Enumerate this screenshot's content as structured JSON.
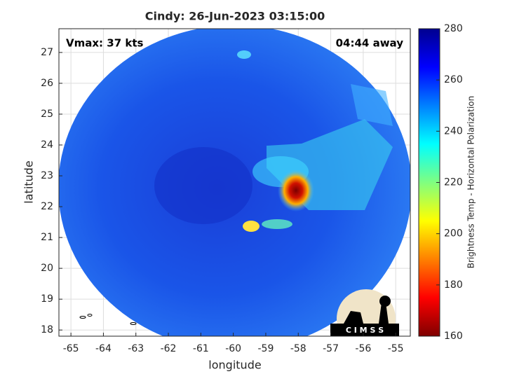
{
  "chart_data": {
    "type": "map",
    "title": "Cindy: 26-Jun-2023 03:15:00",
    "x_label": "longitude",
    "y_label": "latitude",
    "xlim": [
      -65.37,
      -54.55
    ],
    "xticks": [
      -65,
      -64,
      -63,
      -62,
      -61,
      -60,
      -59,
      -58,
      -57,
      -56,
      -55
    ],
    "ylim": [
      17.8,
      27.77
    ],
    "yticks": [
      18,
      19,
      20,
      21,
      22,
      23,
      24,
      25,
      26,
      27
    ],
    "grid": true,
    "annotations": [
      "Vmax: 37 kts",
      "04:44 away"
    ],
    "colorbar": {
      "label": "Brightness Temp - Horizontal Polarization",
      "colormap": "jet",
      "lim": [
        160,
        280
      ],
      "ticks": [
        160,
        180,
        200,
        220,
        240,
        260,
        280
      ]
    },
    "logo": "C I M S S"
  }
}
